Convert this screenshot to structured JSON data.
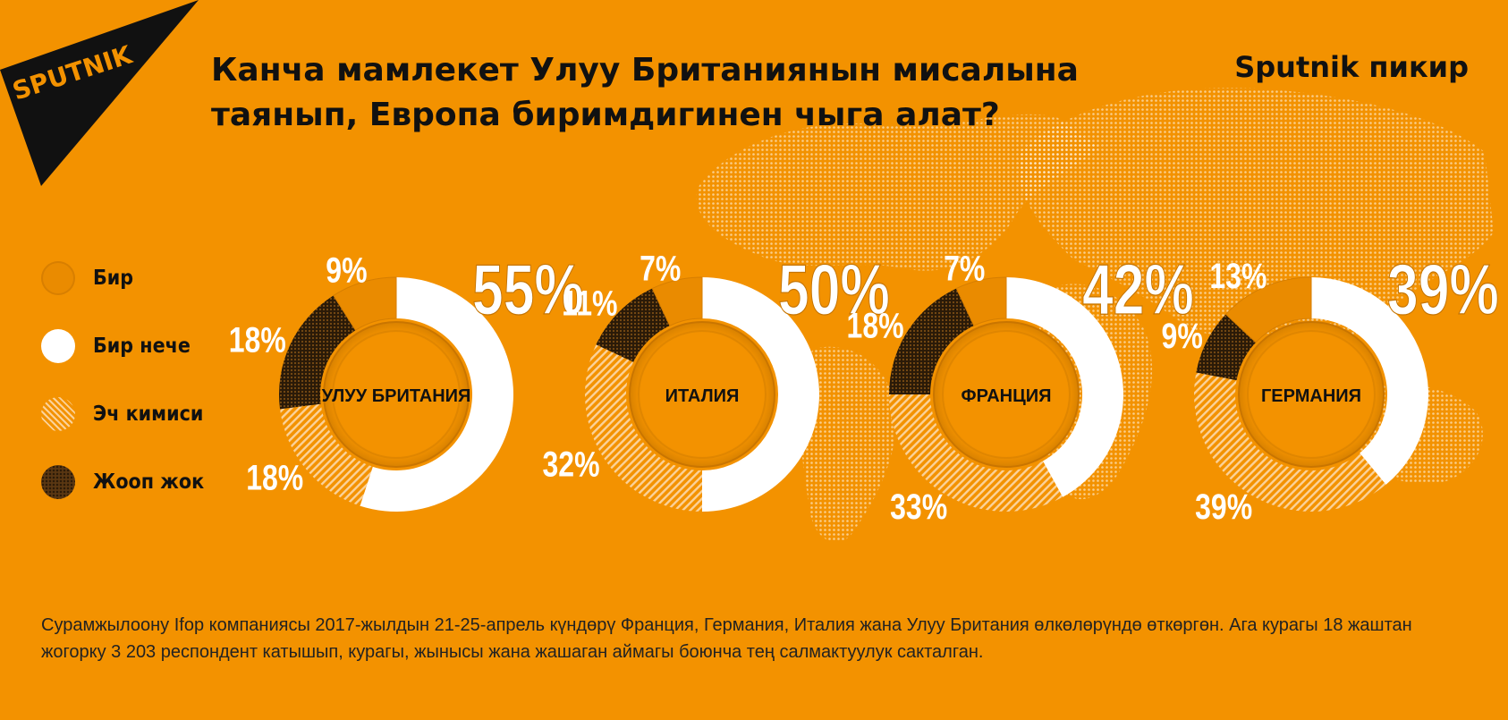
{
  "logo": {
    "text": "SPUTNIK"
  },
  "brand": {
    "right_label": "Sputnik пикир"
  },
  "title": "Канча мамлекет Улуу Британиянын мисалына таянып, Европа биримдигинен чыга алат?",
  "legend": [
    {
      "key": "one",
      "label": "Бир"
    },
    {
      "key": "several",
      "label": "Бир нече"
    },
    {
      "key": "none",
      "label": "Эч кимиси"
    },
    {
      "key": "no_answer",
      "label": "Жооп жок"
    }
  ],
  "colors": {
    "background": "#f39200",
    "one": "#ea8b00",
    "several": "#ffffff",
    "none_hatch": "#f7b96a",
    "no_answer": "#3a2410",
    "text_dark": "#111111"
  },
  "chart_data": {
    "type": "pie",
    "title": "Канча мамлекет Улуу Британиянын мисалына таянып, Европа биримдигинен чыга алат?",
    "categories": [
      "Бир",
      "Бир нече",
      "Эч кимиси",
      "Жооп жок"
    ],
    "series": [
      {
        "name": "УЛУУ БРИТАНИЯ",
        "values": [
          9,
          55,
          18,
          18
        ],
        "labels": [
          "9%",
          "55%",
          "18%",
          "18%"
        ]
      },
      {
        "name": "ИТАЛИЯ",
        "values": [
          7,
          50,
          32,
          11
        ],
        "labels": [
          "7%",
          "50%",
          "32%",
          "11%"
        ]
      },
      {
        "name": "ФРАНЦИЯ",
        "values": [
          7,
          42,
          33,
          18
        ],
        "labels": [
          "7%",
          "42%",
          "33%",
          "18%"
        ]
      },
      {
        "name": "ГЕРМАНИЯ",
        "values": [
          13,
          39,
          39,
          9
        ],
        "labels": [
          "13%",
          "39%",
          "39%",
          "9%"
        ]
      }
    ]
  },
  "source": "Сурамжылоону Ifop компаниясы 2017-жылдын 21-25-апрель күндөрү Франция, Германия, Италия жана Улуу Британия өлкөлөрүндө өткөргөн. Ага курагы 18 жаштан жогорку 3 203 респондент катышып, курагы, жынысы жана жашаган аймагы боюнча тең салмактуулук сакталган."
}
